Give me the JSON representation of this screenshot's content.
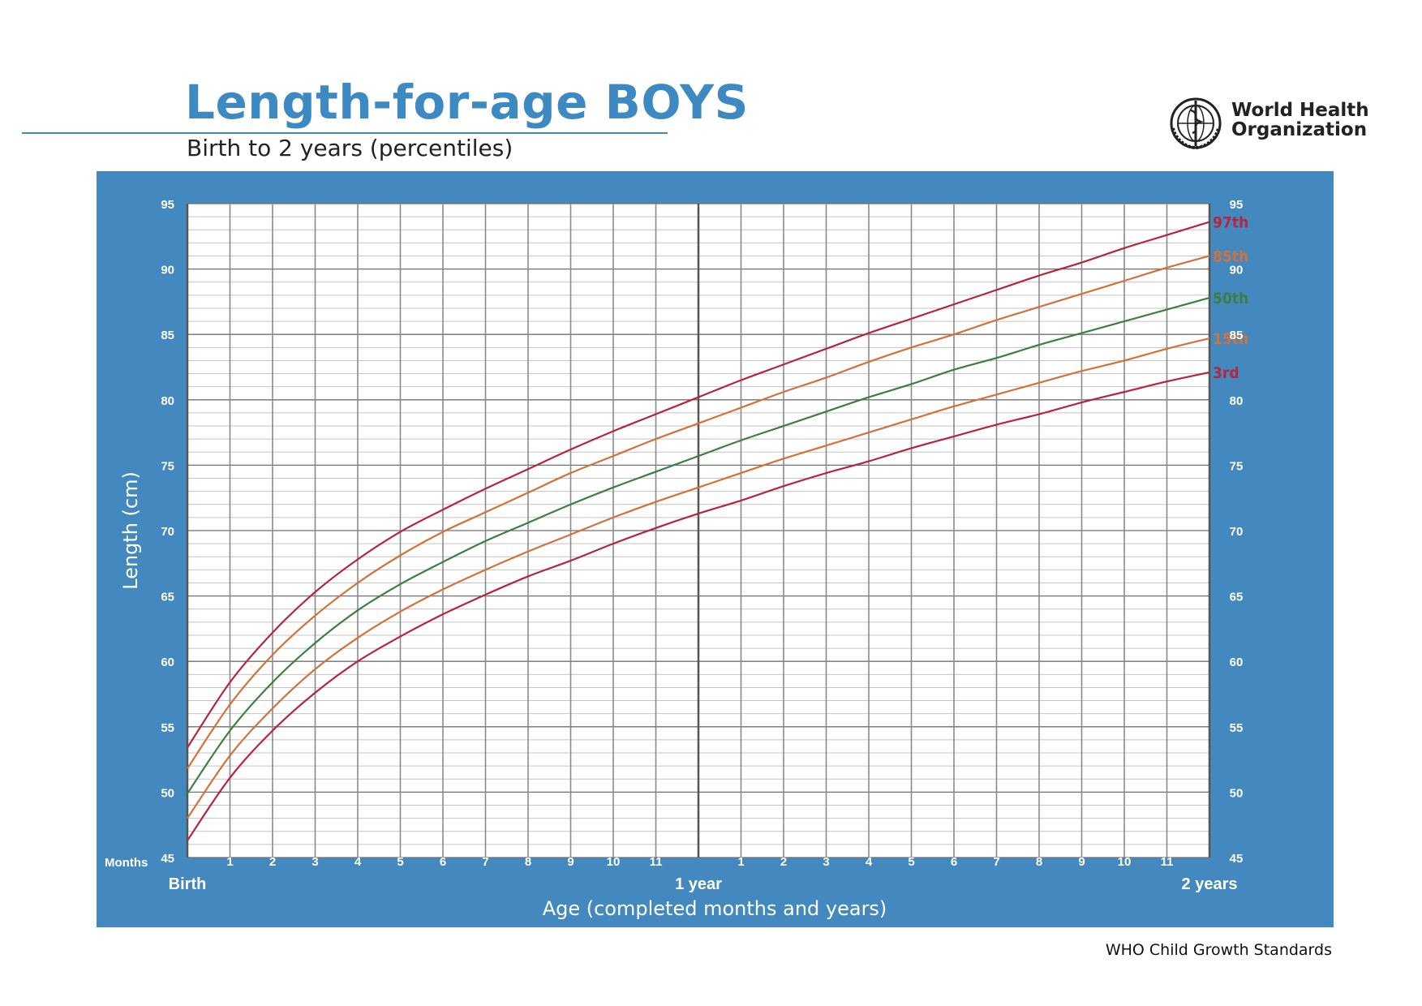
{
  "header": {
    "title": "Length-for-age BOYS",
    "subtitle": "Birth to 2 years (percentiles)",
    "org_line1": "World Health",
    "org_line2": "Organization",
    "logo_icon": "who-emblem-icon"
  },
  "footer": {
    "text": "WHO Child Growth Standards"
  },
  "colors": {
    "panel": "#4389bf",
    "title": "#3d89c2",
    "p3": "#b5253e",
    "p15": "#d2723a",
    "p50": "#3c7f3e",
    "p85": "#d2723a",
    "p97": "#b5253e"
  },
  "chart_data": {
    "type": "line",
    "title": "Length-for-age BOYS",
    "subtitle": "Birth to 2 years (percentiles)",
    "xlabel": "Age (completed months and years)",
    "ylabel": "Length (cm)",
    "xlim": [
      0,
      24
    ],
    "ylim": [
      45,
      95
    ],
    "y_ticks": [
      45,
      50,
      55,
      60,
      65,
      70,
      75,
      80,
      85,
      90,
      95
    ],
    "x_axis_prefix": "Months",
    "x_tick_labels": [
      "1",
      "2",
      "3",
      "4",
      "5",
      "6",
      "7",
      "8",
      "9",
      "10",
      "11",
      "1",
      "2",
      "3",
      "4",
      "5",
      "6",
      "7",
      "8",
      "9",
      "10",
      "11"
    ],
    "x_major_labels": [
      "Birth",
      "1 year",
      "2 years"
    ],
    "grid": true,
    "x": [
      0,
      1,
      2,
      3,
      4,
      5,
      6,
      7,
      8,
      9,
      10,
      11,
      12,
      13,
      14,
      15,
      16,
      17,
      18,
      19,
      20,
      21,
      22,
      23,
      24
    ],
    "series": [
      {
        "name": "97th",
        "values": [
          53.4,
          58.4,
          62.2,
          65.3,
          67.8,
          69.9,
          71.6,
          73.2,
          74.7,
          76.2,
          77.6,
          78.9,
          80.2,
          81.5,
          82.7,
          83.9,
          85.1,
          86.2,
          87.3,
          88.4,
          89.5,
          90.5,
          91.6,
          92.6,
          93.6
        ]
      },
      {
        "name": "85th",
        "values": [
          51.8,
          56.7,
          60.5,
          63.5,
          66.0,
          68.1,
          69.9,
          71.4,
          72.9,
          74.4,
          75.7,
          77.0,
          78.2,
          79.4,
          80.6,
          81.7,
          82.9,
          84.0,
          85.0,
          86.1,
          87.1,
          88.1,
          89.1,
          90.1,
          91.0
        ]
      },
      {
        "name": "50th",
        "values": [
          49.9,
          54.7,
          58.4,
          61.4,
          63.9,
          65.9,
          67.6,
          69.2,
          70.6,
          72.0,
          73.3,
          74.5,
          75.7,
          76.9,
          78.0,
          79.1,
          80.2,
          81.2,
          82.3,
          83.2,
          84.2,
          85.1,
          86.0,
          86.9,
          87.8
        ]
      },
      {
        "name": "15th",
        "values": [
          48.0,
          52.8,
          56.4,
          59.4,
          61.8,
          63.8,
          65.5,
          67.0,
          68.4,
          69.7,
          71.0,
          72.2,
          73.3,
          74.4,
          75.5,
          76.5,
          77.5,
          78.5,
          79.5,
          80.4,
          81.3,
          82.2,
          83.0,
          83.9,
          84.7
        ]
      },
      {
        "name": "3rd",
        "values": [
          46.3,
          51.1,
          54.7,
          57.6,
          60.0,
          61.9,
          63.6,
          65.1,
          66.5,
          67.7,
          69.0,
          70.2,
          71.3,
          72.3,
          73.4,
          74.4,
          75.3,
          76.3,
          77.2,
          78.1,
          78.9,
          79.8,
          80.6,
          81.4,
          82.1
        ]
      }
    ]
  }
}
